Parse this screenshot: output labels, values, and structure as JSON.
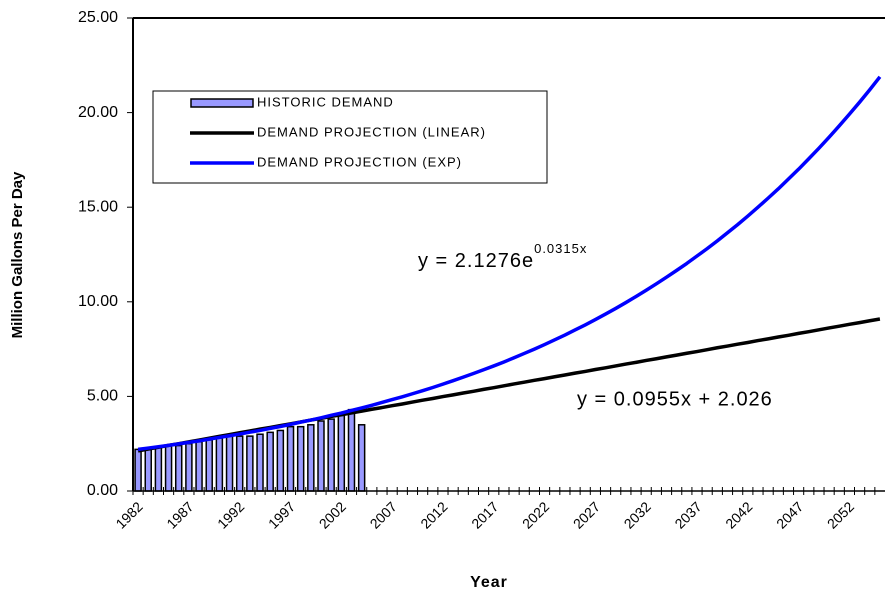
{
  "chart_data": {
    "type": "bar_line",
    "y_label": "Million Gallons Per Day",
    "x_label": "Year",
    "categories": [
      "1982",
      null,
      null,
      null,
      null,
      "1987",
      null,
      null,
      null,
      null,
      "1992",
      null,
      null,
      null,
      null,
      "1997",
      null,
      null,
      null,
      null,
      "2002",
      null,
      null,
      null,
      null,
      "2007",
      null,
      null,
      null,
      null,
      "2012",
      null,
      null,
      null,
      null,
      "2017",
      null,
      null,
      null,
      null,
      "2022",
      null,
      null,
      null,
      null,
      "2027",
      null,
      null,
      null,
      null,
      "2032",
      null,
      null,
      null,
      null,
      "2037",
      null,
      null,
      null,
      null,
      "2042",
      null,
      null,
      null,
      null,
      "2047",
      null,
      null,
      null,
      null,
      "2052",
      null,
      null,
      null
    ],
    "series": [
      {
        "name": "HISTORIC DEMAND",
        "kind": "bar",
        "color": "#9999ff",
        "values": [
          2.2,
          2.2,
          2.3,
          2.4,
          2.4,
          2.5,
          2.6,
          2.7,
          2.8,
          2.9,
          2.9,
          2.9,
          3.0,
          3.1,
          3.2,
          3.4,
          3.4,
          3.5,
          3.7,
          3.8,
          4.0,
          4.3,
          3.5,
          null,
          null,
          null,
          null,
          null,
          null,
          null,
          null,
          null,
          null,
          null,
          null,
          null,
          null,
          null,
          null,
          null,
          null,
          null,
          null,
          null,
          null,
          null,
          null,
          null,
          null,
          null,
          null,
          null,
          null,
          null,
          null,
          null,
          null,
          null,
          null,
          null,
          null,
          null,
          null,
          null,
          null,
          null,
          null,
          null,
          null,
          null,
          null,
          null,
          null,
          null
        ]
      },
      {
        "name": "DEMAND PROJECTION (LINEAR)",
        "kind": "line",
        "color": "#000000",
        "values": [
          2.12,
          2.22,
          2.31,
          2.41,
          2.5,
          2.6,
          2.69,
          2.79,
          2.89,
          2.98,
          3.08,
          3.17,
          3.27,
          3.36,
          3.46,
          3.55,
          3.65,
          3.75,
          3.84,
          3.94,
          4.03,
          4.13,
          4.22,
          4.32,
          4.41,
          4.51,
          4.6,
          4.7,
          4.8,
          4.89,
          4.99,
          5.08,
          5.18,
          5.27,
          5.37,
          5.46,
          5.56,
          5.66,
          5.75,
          5.85,
          5.94,
          6.04,
          6.13,
          6.23,
          6.32,
          6.42,
          6.51,
          6.61,
          6.71,
          6.8,
          6.9,
          6.99,
          7.09,
          7.18,
          7.28,
          7.37,
          7.47,
          7.57,
          7.66,
          7.76,
          7.85,
          7.95,
          8.04,
          8.14,
          8.23,
          8.33,
          8.42,
          8.52,
          8.62,
          8.71,
          8.81,
          8.9,
          9.0,
          9.09
        ]
      },
      {
        "name": "DEMAND PROJECTION (EXP)",
        "kind": "line",
        "color": "#0000ff",
        "values": [
          2.2,
          2.27,
          2.34,
          2.41,
          2.49,
          2.57,
          2.65,
          2.74,
          2.83,
          2.92,
          3.01,
          3.11,
          3.2,
          3.31,
          3.41,
          3.52,
          3.64,
          3.75,
          3.87,
          4.0,
          4.12,
          4.26,
          4.39,
          4.53,
          4.68,
          4.83,
          4.98,
          5.14,
          5.3,
          5.47,
          5.65,
          5.83,
          6.02,
          6.21,
          6.41,
          6.61,
          6.82,
          7.04,
          7.27,
          7.5,
          7.74,
          7.99,
          8.24,
          8.51,
          8.78,
          9.06,
          9.35,
          9.65,
          9.96,
          10.28,
          10.61,
          10.95,
          11.3,
          11.66,
          12.03,
          12.42,
          12.81,
          13.22,
          13.65,
          14.08,
          14.53,
          15.0,
          15.48,
          15.97,
          16.49,
          17.01,
          17.56,
          18.12,
          18.7,
          19.3,
          19.92,
          20.55,
          21.21,
          21.89
        ]
      }
    ],
    "annotations": [
      {
        "text": "y = 2.1276e",
        "superscript": "0.0315x"
      },
      {
        "text": "y = 0.0955x + 2.026"
      }
    ],
    "ylim": [
      0,
      25
    ],
    "yticks": [
      {
        "value": 0,
        "label": "0.00"
      },
      {
        "value": 5,
        "label": "5.00"
      },
      {
        "value": 10,
        "label": "10.00"
      },
      {
        "value": 15,
        "label": "15.00"
      },
      {
        "value": 20,
        "label": "20.00"
      },
      {
        "value": 25,
        "label": "25.00"
      }
    ],
    "grid": false,
    "legend": "top-left"
  }
}
